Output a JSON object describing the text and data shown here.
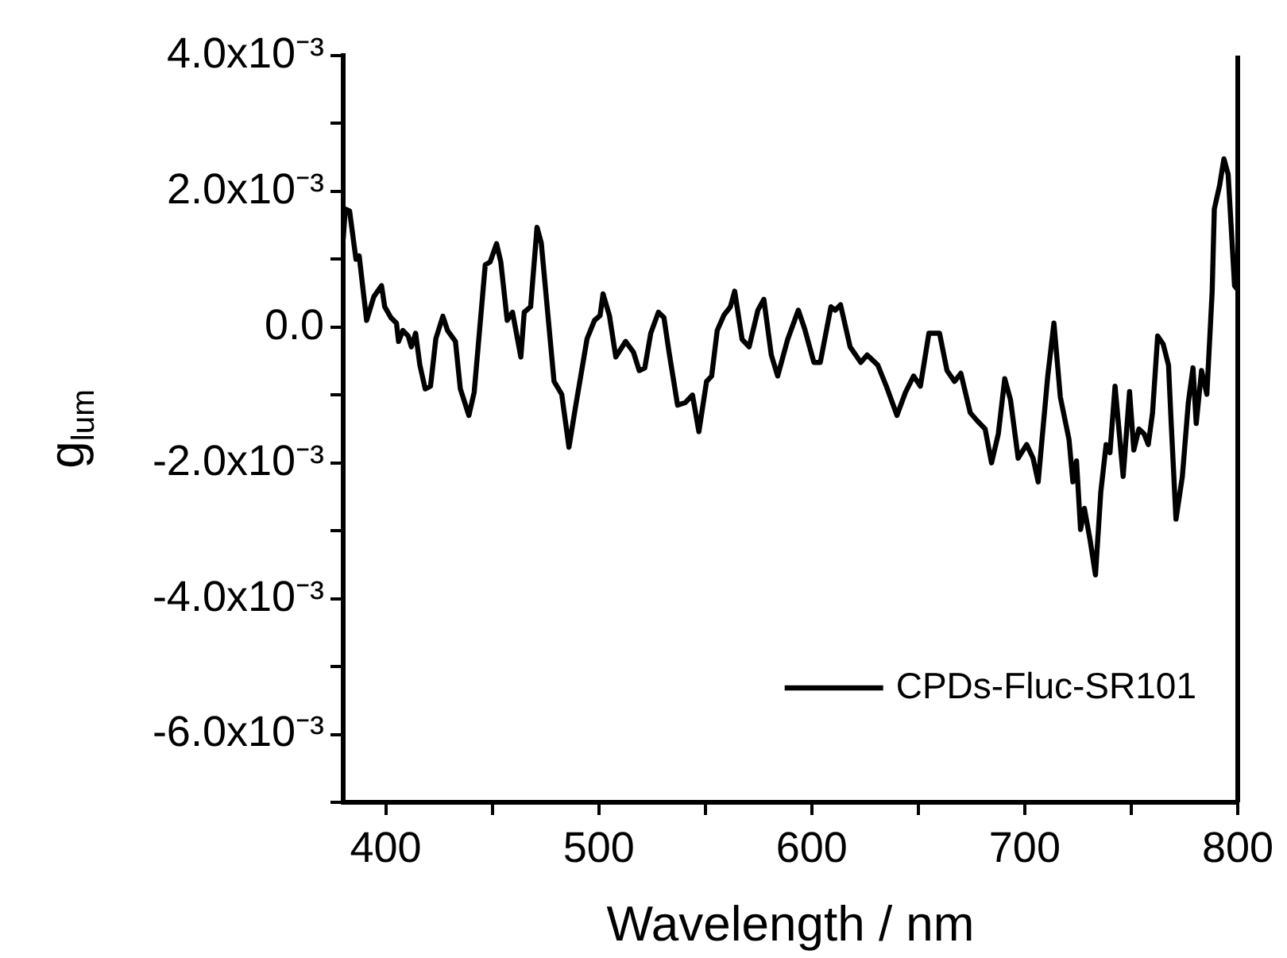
{
  "chart_data": {
    "type": "line",
    "xlabel": "Wavelength / nm",
    "ylabel": "g$_{lum}$",
    "xlim": [
      380,
      800
    ],
    "xticks": [
      400,
      {
        "value": 450,
        "label": null
      },
      500,
      {
        "value": 550,
        "label": null
      },
      600,
      {
        "value": 650,
        "label": null
      },
      700,
      {
        "value": 750,
        "label": null
      },
      800
    ],
    "ylim": [
      -0.007,
      0.004
    ],
    "yticks": [
      {
        "value": -0.007,
        "label": null
      },
      {
        "value": -0.006,
        "label": "-6.0x10⁻³"
      },
      {
        "value": -0.005,
        "label": null
      },
      {
        "value": -0.004,
        "label": "-4.0x10⁻³"
      },
      {
        "value": -0.003,
        "label": null
      },
      {
        "value": -0.002,
        "label": "-2.0x10⁻³"
      },
      {
        "value": -0.001,
        "label": null
      },
      {
        "value": 0,
        "label": "0.0"
      },
      {
        "value": 0.001,
        "label": null
      },
      {
        "value": 0.002,
        "label": "2.0x10⁻³"
      },
      {
        "value": 0.003,
        "label": null
      },
      {
        "value": 0.004,
        "label": "4.0x10⁻³"
      }
    ],
    "grid": false,
    "legend": "bottom right",
    "marker": "none",
    "line_style": "solid",
    "series": [
      {
        "name": "CPDs-Fluc-SR101",
        "color": "#000000",
        "x": [
          380,
          381,
          383,
          386,
          387.5,
          391,
          394.4,
          398,
          399.5,
          402.4,
          405,
          406,
          408,
          410.5,
          412,
          414,
          416,
          418.5,
          421,
          423.5,
          426.8,
          429,
          432.7,
          435,
          439,
          441.5,
          446.7,
          449,
          452,
          454,
          457,
          459.5,
          463.4,
          465,
          468,
          471,
          473,
          479,
          482.6,
          486,
          489,
          494.5,
          498,
          500.6,
          502,
          505,
          508,
          512.6,
          516.3,
          519,
          521.6,
          524.4,
          528,
          530.6,
          533,
          537,
          540.7,
          544,
          547,
          550.6,
          553,
          555.6,
          558.8,
          561.8,
          563.8,
          567.3,
          570.6,
          574.7,
          577.5,
          581,
          584,
          588.7,
          593.7,
          596.7,
          601,
          604,
          609,
          611,
          613.5,
          618,
          623,
          626,
          631,
          635,
          640,
          644,
          647.8,
          651,
          655,
          660,
          663.5,
          667,
          670,
          674.4,
          677.7,
          681.4,
          684.4,
          687.6,
          690.6,
          693.3,
          696.9,
          700.9,
          703.9,
          706.3,
          710.8,
          713.7,
          716.7,
          720.8,
          722.6,
          724.3,
          726.2,
          728,
          730.7,
          733.2,
          735.7,
          738.2,
          740,
          742.4,
          746.2,
          749.2,
          751.2,
          753.6,
          756,
          758,
          760,
          762.4,
          765,
          767.5,
          768.7,
          771,
          774,
          776.8,
          779,
          780.5,
          783,
          785.5,
          788,
          789,
          791.5,
          793.5,
          795.5,
          798.5,
          800
        ],
        "values": [
          0.0013,
          0.00174,
          0.00171,
          0.001,
          0.00105,
          0.0001,
          0.00045,
          0.00061,
          0.0003,
          0.00014,
          6e-05,
          -0.00021,
          -5e-05,
          -0.00013,
          -0.00029,
          -9e-05,
          -0.00056,
          -0.00091,
          -0.00087,
          -0.00017,
          0.00016,
          -5e-05,
          -0.00021,
          -0.00091,
          -0.0013,
          -0.00096,
          0.00092,
          0.00096,
          0.00123,
          0.00096,
          0.0001,
          0.00022,
          -0.00044,
          0.00022,
          0.0003,
          0.00147,
          0.00124,
          -0.0008,
          -0.00099,
          -0.00177,
          -0.00119,
          -0.00017,
          0.0001,
          0.00017,
          0.00049,
          0.00017,
          -0.00044,
          -0.00021,
          -0.00037,
          -0.00064,
          -0.0006,
          -9e-05,
          0.00022,
          0.00014,
          -0.00037,
          -0.00115,
          -0.00111,
          -0.001,
          -0.00154,
          -0.0008,
          -0.00072,
          -5e-05,
          0.00018,
          0.0003,
          0.00053,
          -0.00018,
          -0.00029,
          0.00025,
          0.00041,
          -0.00041,
          -0.00072,
          -0.00018,
          0.00025,
          -3e-05,
          -0.00052,
          -0.00052,
          0.0003,
          0.00025,
          0.00033,
          -0.00029,
          -0.00052,
          -0.00041,
          -0.00056,
          -0.00087,
          -0.0013,
          -0.00096,
          -0.00072,
          -0.00087,
          -9e-05,
          -9e-05,
          -0.00064,
          -0.0008,
          -0.00068,
          -0.00126,
          -0.00138,
          -0.0015,
          -0.002,
          -0.00157,
          -0.00076,
          -0.00107,
          -0.00193,
          -0.00173,
          -0.00193,
          -0.00228,
          -0.00072,
          6e-05,
          -0.00103,
          -0.00166,
          -0.00228,
          -0.00197,
          -0.00298,
          -0.00267,
          -0.00314,
          -0.00365,
          -0.00243,
          -0.00173,
          -0.00185,
          -0.00087,
          -0.0022,
          -0.00095,
          -0.00181,
          -0.0015,
          -0.00157,
          -0.00173,
          -0.00126,
          -0.00013,
          -0.00025,
          -0.00056,
          -0.00138,
          -0.00283,
          -0.0022,
          -0.00111,
          -0.0006,
          -0.00142,
          -0.00064,
          -0.00099,
          0.00053,
          0.00174,
          0.00209,
          0.00248,
          0.00225,
          0.00061,
          0.00055
        ]
      }
    ]
  }
}
